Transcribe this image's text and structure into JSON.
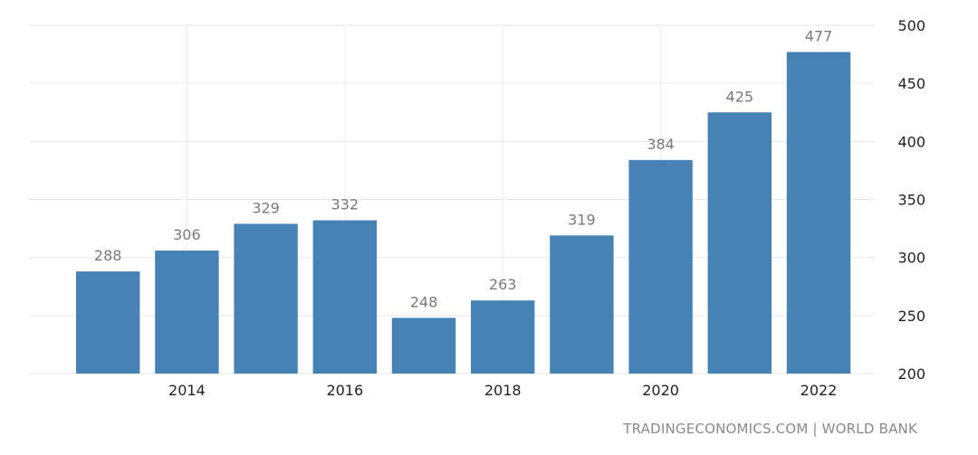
{
  "source": "TRADINGECONOMICS.COM | WORLD BANK",
  "chart_data": {
    "type": "bar",
    "title": "",
    "xlabel": "",
    "ylabel": "",
    "categories": [
      "2013",
      "2014",
      "2015",
      "2016",
      "2017",
      "2018",
      "2019",
      "2020",
      "2021",
      "2022"
    ],
    "values": [
      288,
      306,
      329,
      332,
      248,
      263,
      319,
      384,
      425,
      477
    ],
    "data_labels": [
      "288",
      "306",
      "329",
      "332",
      "248",
      "263",
      "319",
      "384",
      "425",
      "477"
    ],
    "x_tick_labels": [
      "2014",
      "2016",
      "2018",
      "2020",
      "2022"
    ],
    "y_ticks": [
      200,
      250,
      300,
      350,
      400,
      450,
      500
    ],
    "ylim": [
      200,
      500
    ],
    "y_axis_side": "right",
    "grid": true,
    "legend": "none",
    "bar_color": "#4682b4"
  }
}
